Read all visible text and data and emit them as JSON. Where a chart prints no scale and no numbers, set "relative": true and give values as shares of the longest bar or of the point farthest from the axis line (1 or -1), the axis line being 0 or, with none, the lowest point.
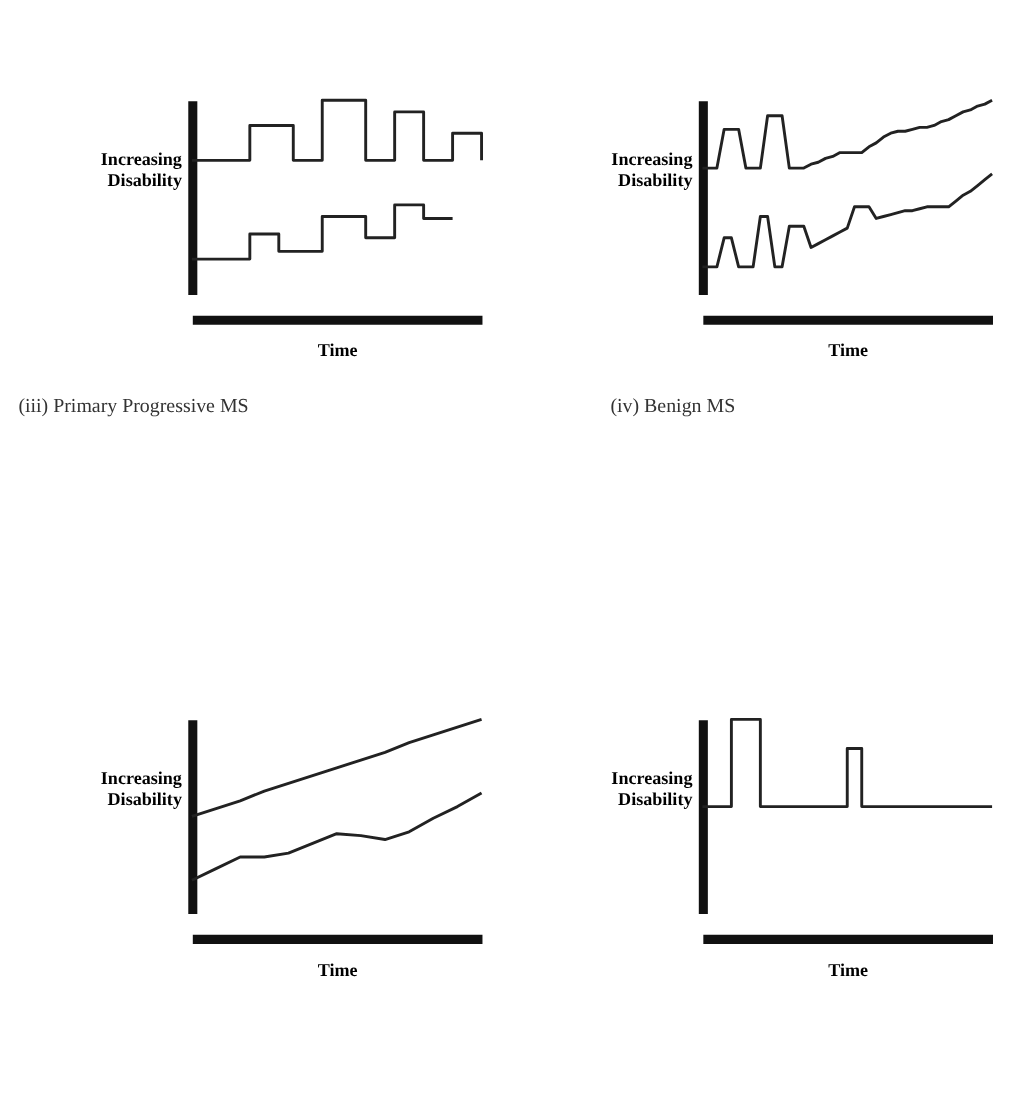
{
  "chart_data": [
    {
      "type": "step",
      "relative": true,
      "xlabel": "Time",
      "ylabel": "Increasing Disability",
      "tick_labels": false,
      "grid": false,
      "legend": false,
      "categories": [
        null,
        null,
        null,
        null,
        null,
        null,
        null,
        null,
        null,
        null,
        null,
        null,
        null,
        null,
        null,
        null,
        null,
        null,
        null,
        null,
        null
      ],
      "series": [
        {
          "color": "#222222",
          "values": [
            0.69,
            0.69,
            0.69,
            0.69,
            0.87,
            0.87,
            0.87,
            0.69,
            0.69,
            1.0,
            1.0,
            1.0,
            0.69,
            0.69,
            0.94,
            0.94,
            0.69,
            0.69,
            0.83,
            0.83,
            0.69
          ]
        },
        {
          "color": "#222222",
          "values": [
            0.18,
            0.18,
            0.18,
            0.18,
            0.31,
            0.31,
            0.22,
            0.22,
            0.22,
            0.4,
            0.4,
            0.4,
            0.29,
            0.29,
            0.46,
            0.46,
            0.39,
            0.39,
            0.39,
            null,
            null
          ]
        }
      ]
    },
    {
      "type": "line",
      "relative": true,
      "xlabel": "Time",
      "ylabel": "Increasing Disability",
      "tick_labels": false,
      "grid": false,
      "legend": false,
      "categories": [
        null,
        null,
        null,
        null,
        null,
        null,
        null,
        null,
        null,
        null,
        null,
        null,
        null,
        null,
        null,
        null,
        null,
        null,
        null,
        null,
        null,
        null,
        null,
        null,
        null,
        null,
        null,
        null,
        null,
        null,
        null,
        null,
        null,
        null,
        null,
        null,
        null,
        null,
        null,
        null,
        null
      ],
      "series": [
        {
          "color": "#222222",
          "values": [
            0.65,
            0.65,
            0.65,
            0.85,
            0.85,
            0.85,
            0.65,
            0.65,
            0.65,
            0.92,
            0.92,
            0.92,
            0.65,
            0.65,
            0.65,
            0.67,
            0.68,
            0.7,
            0.71,
            0.73,
            0.73,
            0.73,
            0.73,
            0.76,
            0.78,
            0.81,
            0.83,
            0.84,
            0.84,
            0.85,
            0.86,
            0.86,
            0.87,
            0.89,
            0.9,
            0.92,
            0.94,
            0.95,
            0.97,
            0.98,
            1.0
          ]
        },
        {
          "color": "#222222",
          "values": [
            0.14,
            0.14,
            0.14,
            0.29,
            0.29,
            0.14,
            0.14,
            0.14,
            0.4,
            0.4,
            0.14,
            0.14,
            0.35,
            0.35,
            0.35,
            0.24,
            0.26,
            0.28,
            0.3,
            0.32,
            0.34,
            0.45,
            0.45,
            0.45,
            0.39,
            0.4,
            0.41,
            0.42,
            0.43,
            0.43,
            0.44,
            0.45,
            0.45,
            0.45,
            0.45,
            0.48,
            0.51,
            0.53,
            0.56,
            0.59,
            0.62
          ]
        }
      ]
    },
    {
      "type": "line",
      "relative": true,
      "title": "(iii) Primary Progressive MS",
      "xlabel": "Time",
      "ylabel": "Increasing Disability",
      "tick_labels": false,
      "grid": false,
      "legend": false,
      "categories": [
        null,
        null,
        null,
        null,
        null,
        null,
        null,
        null,
        null,
        null,
        null,
        null,
        null
      ],
      "series": [
        {
          "color": "#222222",
          "values": [
            0.5,
            0.54,
            0.58,
            0.63,
            0.67,
            0.71,
            0.75,
            0.79,
            0.83,
            0.88,
            0.92,
            0.96,
            1.0
          ]
        },
        {
          "color": "#222222",
          "values": [
            0.17,
            0.23,
            0.29,
            0.29,
            0.31,
            0.36,
            0.41,
            0.4,
            0.38,
            0.42,
            0.49,
            0.55,
            0.62
          ]
        }
      ]
    },
    {
      "type": "step",
      "relative": true,
      "title": "(iv) Benign MS",
      "xlabel": "Time",
      "ylabel": "Increasing Disability",
      "tick_labels": false,
      "grid": false,
      "legend": false,
      "categories": [
        null,
        null,
        null,
        null,
        null,
        null,
        null,
        null,
        null,
        null,
        null,
        null,
        null,
        null,
        null,
        null,
        null,
        null,
        null,
        null,
        null
      ],
      "series": [
        {
          "color": "#222222",
          "values": [
            0.55,
            0.55,
            1.0,
            1.0,
            0.55,
            0.55,
            0.55,
            0.55,
            0.55,
            0.55,
            0.85,
            0.55,
            0.55,
            0.55,
            0.55,
            0.55,
            0.55,
            0.55,
            0.55,
            0.55,
            0.55
          ]
        }
      ]
    }
  ]
}
